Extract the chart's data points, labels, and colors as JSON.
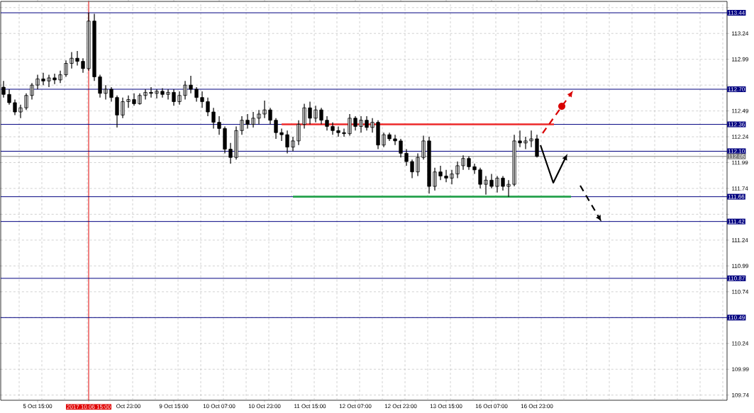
{
  "chart_data": {
    "type": "candlestick",
    "categories": [
      null,
      null,
      null,
      null,
      null,
      null,
      "5 Oct 15:00",
      null,
      null,
      null,
      null,
      null,
      null,
      null,
      null,
      "2017.10.06 15:00",
      null,
      null,
      null,
      null,
      null,
      null,
      "Oct 23:00",
      null,
      null,
      null,
      null,
      null,
      null,
      null,
      "9 Oct 15:00",
      null,
      null,
      null,
      null,
      null,
      null,
      null,
      "10 Oct 07:00",
      null,
      null,
      null,
      null,
      null,
      null,
      null,
      "10 Oct 23:00",
      null,
      null,
      null,
      null,
      null,
      null,
      null,
      "11 Oct 15:00",
      null,
      null,
      null,
      null,
      null,
      null,
      null,
      "12 Oct 07:00",
      null,
      null,
      null,
      null,
      null,
      null,
      null,
      "12 Oct 23:00",
      null,
      null,
      null,
      null,
      null,
      null,
      null,
      "13 Oct 15:00",
      null,
      null,
      null,
      null,
      null,
      null,
      null,
      "16 Oct 07:00",
      null,
      null,
      null,
      null,
      null,
      null,
      null,
      "16 Oct 23:00",
      null,
      null,
      null,
      null,
      null,
      null,
      null,
      null,
      null,
      null,
      null,
      null,
      null,
      null,
      null,
      null,
      null,
      null,
      null,
      null,
      null,
      null,
      null,
      null,
      null,
      null,
      null,
      null,
      null,
      null,
      null,
      null,
      null
    ],
    "ohlc": [
      [
        112.72,
        112.78,
        112.62,
        112.65
      ],
      [
        112.65,
        112.7,
        112.55,
        112.57
      ],
      [
        112.57,
        112.6,
        112.45,
        112.48
      ],
      [
        112.48,
        112.55,
        112.42,
        112.52
      ],
      [
        112.52,
        112.66,
        112.5,
        112.64
      ],
      [
        112.64,
        112.76,
        112.6,
        112.74
      ],
      [
        112.74,
        112.84,
        112.7,
        112.8
      ],
      [
        112.8,
        112.86,
        112.74,
        112.78
      ],
      [
        112.78,
        112.84,
        112.72,
        112.81
      ],
      [
        112.81,
        112.85,
        112.75,
        112.79
      ],
      [
        112.79,
        112.88,
        112.76,
        112.84
      ],
      [
        112.84,
        112.98,
        112.82,
        112.95
      ],
      [
        112.95,
        113.06,
        112.9,
        113.0
      ],
      [
        113.0,
        113.07,
        112.93,
        112.97
      ],
      [
        112.97,
        113.0,
        112.86,
        112.9
      ],
      [
        112.9,
        113.44,
        112.88,
        113.36
      ],
      [
        113.36,
        113.43,
        112.78,
        112.82
      ],
      [
        112.82,
        112.84,
        112.62,
        112.66
      ],
      [
        112.66,
        112.74,
        112.6,
        112.7
      ],
      [
        112.7,
        112.72,
        112.58,
        112.62
      ],
      [
        112.62,
        112.64,
        112.33,
        112.45
      ],
      [
        112.45,
        112.62,
        112.42,
        112.58
      ],
      [
        112.58,
        112.64,
        112.52,
        112.6
      ],
      [
        112.6,
        112.66,
        112.54,
        112.56
      ],
      [
        112.56,
        112.66,
        112.55,
        112.64
      ],
      [
        112.64,
        112.7,
        112.6,
        112.67
      ],
      [
        112.67,
        112.72,
        112.62,
        112.66
      ],
      [
        112.66,
        112.7,
        112.61,
        112.68
      ],
      [
        112.68,
        112.71,
        112.62,
        112.65
      ],
      [
        112.65,
        112.7,
        112.6,
        112.67
      ],
      [
        112.67,
        112.7,
        112.54,
        112.58
      ],
      [
        112.58,
        112.68,
        112.55,
        112.64
      ],
      [
        112.64,
        112.78,
        112.6,
        112.74
      ],
      [
        112.74,
        112.83,
        112.66,
        112.7
      ],
      [
        112.7,
        112.72,
        112.58,
        112.62
      ],
      [
        112.62,
        112.68,
        112.52,
        112.58
      ],
      [
        112.58,
        112.62,
        112.44,
        112.48
      ],
      [
        112.48,
        112.52,
        112.32,
        112.38
      ],
      [
        112.38,
        112.44,
        112.26,
        112.32
      ],
      [
        112.32,
        112.34,
        112.08,
        112.12
      ],
      [
        112.12,
        112.18,
        111.98,
        112.04
      ],
      [
        112.04,
        112.34,
        112.02,
        112.3
      ],
      [
        112.3,
        112.44,
        112.26,
        112.4
      ],
      [
        112.4,
        112.46,
        112.32,
        112.36
      ],
      [
        112.36,
        112.48,
        112.33,
        112.42
      ],
      [
        112.42,
        112.5,
        112.36,
        112.46
      ],
      [
        112.46,
        112.59,
        112.42,
        112.5
      ],
      [
        112.5,
        112.52,
        112.36,
        112.4
      ],
      [
        112.4,
        112.42,
        112.22,
        112.28
      ],
      [
        112.28,
        112.32,
        112.2,
        112.26
      ],
      [
        112.26,
        112.3,
        112.08,
        112.14
      ],
      [
        112.14,
        112.24,
        112.1,
        112.2
      ],
      [
        112.2,
        112.4,
        112.16,
        112.36
      ],
      [
        112.36,
        112.56,
        112.32,
        112.52
      ],
      [
        112.52,
        112.58,
        112.36,
        112.42
      ],
      [
        112.42,
        112.54,
        112.38,
        112.5
      ],
      [
        112.5,
        112.52,
        112.36,
        112.4
      ],
      [
        112.4,
        112.44,
        112.3,
        112.34
      ],
      [
        112.34,
        112.38,
        112.26,
        112.3
      ],
      [
        112.3,
        112.34,
        112.24,
        112.28
      ],
      [
        112.28,
        112.32,
        112.24,
        112.27
      ],
      [
        112.27,
        112.46,
        112.25,
        112.42
      ],
      [
        112.42,
        112.44,
        112.3,
        112.34
      ],
      [
        112.34,
        112.44,
        112.28,
        112.4
      ],
      [
        112.4,
        112.44,
        112.3,
        112.33
      ],
      [
        112.33,
        112.42,
        112.28,
        112.38
      ],
      [
        112.38,
        112.4,
        112.12,
        112.16
      ],
      [
        112.16,
        112.28,
        112.14,
        112.26
      ],
      [
        112.26,
        112.28,
        112.2,
        112.22
      ],
      [
        112.22,
        112.26,
        112.16,
        112.2
      ],
      [
        112.2,
        112.22,
        112.04,
        112.08
      ],
      [
        112.08,
        112.12,
        111.96,
        112.0
      ],
      [
        112.0,
        112.02,
        111.84,
        111.9
      ],
      [
        111.9,
        112.08,
        111.86,
        112.04
      ],
      [
        112.04,
        112.25,
        112.02,
        112.2
      ],
      [
        112.2,
        112.24,
        111.69,
        111.76
      ],
      [
        111.76,
        111.94,
        111.72,
        111.9
      ],
      [
        111.9,
        111.96,
        111.82,
        111.86
      ],
      [
        111.86,
        111.92,
        111.8,
        111.84
      ],
      [
        111.84,
        111.92,
        111.78,
        111.88
      ],
      [
        111.88,
        112.0,
        111.84,
        111.96
      ],
      [
        111.96,
        112.06,
        111.92,
        112.03
      ],
      [
        112.03,
        112.05,
        111.92,
        111.95
      ],
      [
        111.95,
        111.98,
        111.88,
        111.92
      ],
      [
        111.92,
        111.94,
        111.74,
        111.78
      ],
      [
        111.78,
        111.86,
        111.68,
        111.82
      ],
      [
        111.82,
        111.88,
        111.74,
        111.76
      ],
      [
        111.76,
        111.86,
        111.7,
        111.84
      ],
      [
        111.84,
        111.86,
        111.72,
        111.76
      ],
      [
        111.76,
        111.82,
        111.66,
        111.78
      ],
      [
        111.78,
        112.26,
        111.76,
        112.2
      ],
      [
        112.2,
        112.3,
        112.14,
        112.18
      ],
      [
        112.18,
        112.24,
        112.12,
        112.2
      ],
      [
        112.2,
        112.3,
        112.14,
        112.22
      ],
      [
        112.22,
        112.26,
        112.04,
        112.05
      ],
      null,
      null,
      null,
      null,
      null,
      null,
      null,
      null,
      null,
      null,
      null,
      null,
      null,
      null,
      null,
      null,
      null,
      null,
      null,
      null,
      null,
      null,
      null,
      null,
      null,
      null,
      null,
      null,
      null,
      null,
      null,
      null,
      null
    ],
    "series": [
      {
        "type": "line",
        "color": "#ee2a2a",
        "values": [
          null,
          null,
          null,
          null,
          null,
          null,
          null,
          null,
          null,
          null,
          null,
          null,
          null,
          null,
          null,
          null,
          null,
          null,
          null,
          null,
          null,
          null,
          null,
          null,
          null,
          null,
          null,
          null,
          null,
          null,
          null,
          null,
          null,
          null,
          null,
          null,
          null,
          null,
          null,
          null,
          null,
          null,
          null,
          null,
          null,
          null,
          null,
          null,
          null,
          112.36,
          112.36,
          112.36,
          112.36,
          112.36,
          112.36,
          112.36,
          112.36,
          112.36,
          112.36,
          112.36,
          112.36,
          112.36,
          112.36,
          112.36,
          112.36,
          112.36,
          112.36,
          112.36,
          112.36,
          112.36,
          112.36,
          112.36,
          112.36,
          112.36,
          112.36,
          112.36,
          112.36,
          112.36,
          112.36,
          112.36,
          112.36,
          112.36,
          112.36,
          112.36,
          112.36,
          112.36,
          112.36,
          112.36,
          112.36,
          112.36,
          112.36,
          112.36,
          112.36,
          112.36,
          112.36,
          112.36,
          112.36,
          112.36,
          null,
          null,
          null,
          null,
          null,
          null,
          null,
          null,
          null,
          null,
          null,
          null,
          null,
          null,
          null,
          null,
          null,
          null,
          null,
          null,
          null,
          null,
          null,
          null,
          null,
          null,
          null,
          null,
          null,
          null
        ]
      },
      {
        "type": "line",
        "color": "#22a04a",
        "values": [
          null,
          null,
          null,
          null,
          null,
          null,
          null,
          null,
          null,
          null,
          null,
          null,
          null,
          null,
          null,
          null,
          null,
          null,
          null,
          null,
          null,
          null,
          null,
          null,
          null,
          null,
          null,
          null,
          null,
          null,
          null,
          null,
          null,
          null,
          null,
          null,
          null,
          null,
          null,
          null,
          null,
          null,
          null,
          null,
          null,
          null,
          null,
          null,
          null,
          null,
          null,
          111.66,
          111.66,
          111.66,
          111.66,
          111.66,
          111.66,
          111.66,
          111.66,
          111.66,
          111.66,
          111.66,
          111.66,
          111.66,
          111.66,
          111.66,
          111.66,
          111.66,
          111.66,
          111.66,
          111.66,
          111.66,
          111.66,
          111.66,
          111.66,
          111.66,
          111.66,
          111.66,
          111.66,
          111.66,
          111.66,
          111.66,
          111.66,
          111.66,
          111.66,
          111.66,
          111.66,
          111.66,
          111.66,
          111.66,
          111.66,
          111.66,
          111.66,
          111.66,
          111.66,
          111.66,
          111.66,
          111.66,
          111.66,
          111.66,
          111.66,
          null,
          null,
          null,
          null,
          null,
          null,
          null,
          null,
          null,
          null,
          null,
          null,
          null,
          null,
          null,
          null,
          null,
          null,
          null,
          null,
          null,
          null,
          null,
          null,
          null,
          null,
          null
        ]
      }
    ],
    "ylim": [
      109.69,
      113.55
    ],
    "yticks": [
      {
        "value": 113.49,
        "label": null
      },
      113.24,
      112.99,
      {
        "value": 112.74,
        "label": null
      },
      112.49,
      112.24,
      111.99,
      111.74,
      {
        "value": 111.49,
        "label": null
      },
      111.24,
      110.99,
      110.74,
      {
        "value": 110.49,
        "label": null
      },
      110.24,
      109.99,
      109.74
    ],
    "grid": true,
    "ref_lines": [
      {
        "axis": "x",
        "value": "2017.10.06 15:00",
        "color": "#e00000"
      },
      {
        "axis": "y",
        "value": 113.44,
        "label": "113.44",
        "color": "#000080"
      },
      {
        "axis": "y",
        "value": 112.7,
        "label": "112.70",
        "color": "#000080"
      },
      {
        "axis": "y",
        "value": 112.36,
        "label": "112.36",
        "color": "#000080"
      },
      {
        "axis": "y",
        "value": 112.1,
        "label": "112.10",
        "color": "#000080"
      },
      {
        "axis": "y",
        "value": 112.05,
        "label": "112.05",
        "color": "#808080"
      },
      {
        "axis": "y",
        "value": 111.66,
        "label": "111.66",
        "color": "#000080"
      },
      {
        "axis": "y",
        "value": 111.42,
        "label": "111.42",
        "color": "#000080"
      },
      {
        "axis": "y",
        "value": 110.87,
        "label": "110.87",
        "color": "#000080"
      },
      {
        "axis": "y",
        "value": 110.49,
        "label": "110.49",
        "color": "#000080"
      }
    ]
  }
}
